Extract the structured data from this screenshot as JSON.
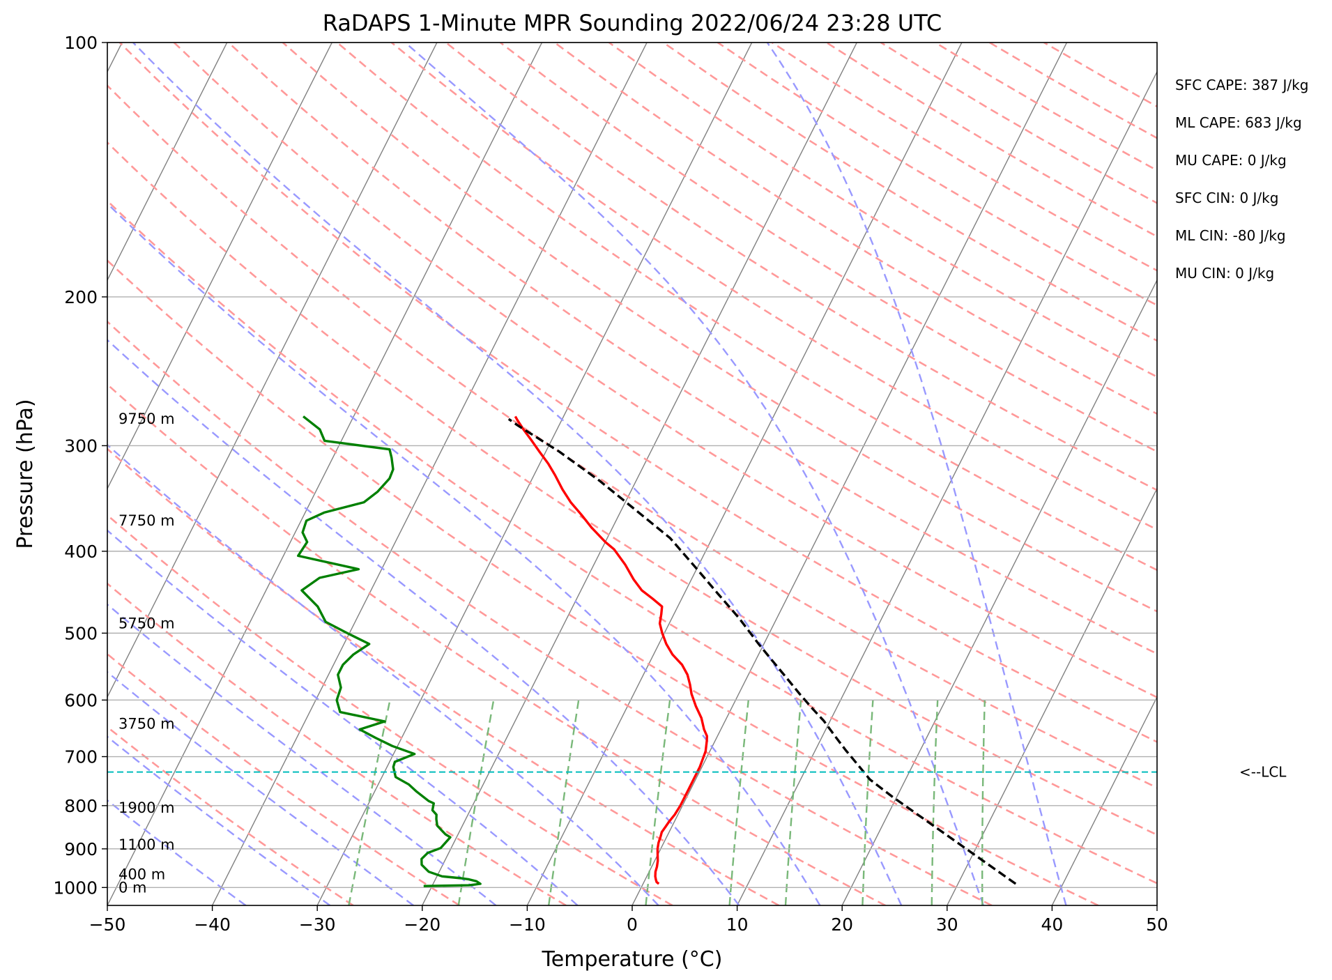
{
  "chart_data": {
    "type": "line",
    "subtype": "skew-t log-p sounding",
    "title": "RaDAPS 1-Minute MPR Sounding 2022/06/24 23:28 UTC",
    "xlabel": "Temperature (°C)",
    "ylabel": "Pressure (hPa)",
    "xlim": [
      -50,
      50
    ],
    "ylim": [
      1050,
      100
    ],
    "yscale": "log",
    "xticks": [
      "−50",
      "−40",
      "−30",
      "−20",
      "−10",
      "0",
      "10",
      "20",
      "30",
      "40",
      "50"
    ],
    "yticks": [
      {
        "value": 100,
        "label": "100"
      },
      {
        "value": 200,
        "label": "200"
      },
      {
        "value": 300,
        "label": "300"
      },
      {
        "value": 400,
        "label": "400"
      },
      {
        "value": 500,
        "label": "500"
      },
      {
        "value": 600,
        "label": "600"
      },
      {
        "value": 700,
        "label": "700"
      },
      {
        "value": 800,
        "label": "800"
      },
      {
        "value": 900,
        "label": "900"
      },
      {
        "value": 1000,
        "label": "1000"
      }
    ],
    "grid": true,
    "height_labels": [
      {
        "label": "9750 m",
        "p": 279
      },
      {
        "label": "7750 m",
        "p": 368
      },
      {
        "label": "5750 m",
        "p": 487
      },
      {
        "label": "3750 m",
        "p": 640
      },
      {
        "label": "1900 m",
        "p": 805
      },
      {
        "label": "1100 m",
        "p": 890
      },
      {
        "label": "400 m",
        "p": 965
      },
      {
        "label": "0 m",
        "p": 1000
      }
    ],
    "stats": [
      "SFC CAPE: 387 J/kg",
      "ML CAPE: 683 J/kg",
      "MU CAPE: 0 J/kg",
      "SFC CIN: 0 J/kg",
      "ML CIN: -80 J/kg",
      "MU CIN: 0 J/kg"
    ],
    "lcl": {
      "p": 730,
      "label": "<--LCL"
    },
    "series": [
      {
        "key": "temperature",
        "color": "#ff0000",
        "points": [
          [
            1.5,
            990
          ],
          [
            1.2,
            985
          ],
          [
            1.0,
            978
          ],
          [
            0.8,
            970
          ],
          [
            0.6,
            958
          ],
          [
            0.5,
            945
          ],
          [
            0.3,
            930
          ],
          [
            0.0,
            915
          ],
          [
            -0.3,
            900
          ],
          [
            -0.5,
            885
          ],
          [
            -0.6,
            870
          ],
          [
            -0.7,
            860
          ],
          [
            -0.6,
            848
          ],
          [
            -0.5,
            835
          ],
          [
            -0.3,
            820
          ],
          [
            -0.2,
            800
          ],
          [
            -0.2,
            790
          ],
          [
            -0.2,
            778
          ],
          [
            -0.2,
            765
          ],
          [
            -0.2,
            745
          ],
          [
            -0.2,
            720
          ],
          [
            -0.3,
            705
          ],
          [
            -0.4,
            690
          ],
          [
            -0.6,
            680
          ],
          [
            -0.8,
            670
          ],
          [
            -1.0,
            662
          ],
          [
            -1.6,
            650
          ],
          [
            -2.4,
            630
          ],
          [
            -3.5,
            610
          ],
          [
            -4.5,
            590
          ],
          [
            -5.1,
            575
          ],
          [
            -5.8,
            560
          ],
          [
            -6.8,
            545
          ],
          [
            -8.2,
            530
          ],
          [
            -9.3,
            515
          ],
          [
            -10.2,
            500
          ],
          [
            -10.9,
            487
          ],
          [
            -11.2,
            475
          ],
          [
            -11.5,
            465
          ],
          [
            -12.8,
            455
          ],
          [
            -14.2,
            445
          ],
          [
            -15.5,
            432
          ],
          [
            -17.0,
            415
          ],
          [
            -18.8,
            398
          ],
          [
            -20.0,
            390
          ],
          [
            -22.0,
            375
          ],
          [
            -23.6,
            362
          ],
          [
            -25.2,
            350
          ],
          [
            -26.6,
            338
          ],
          [
            -28.0,
            325
          ],
          [
            -29.2,
            315
          ],
          [
            -30.6,
            305
          ],
          [
            -32.0,
            295
          ],
          [
            -33.2,
            287
          ],
          [
            -34.2,
            280
          ],
          [
            -34.6,
            277
          ]
        ]
      },
      {
        "key": "dewpoint",
        "color": "#008000",
        "points": [
          [
            -20.8,
            996
          ],
          [
            -16.5,
            994
          ],
          [
            -15.5,
            990
          ],
          [
            -16.0,
            983
          ],
          [
            -16.8,
            978
          ],
          [
            -17.6,
            975
          ],
          [
            -19.5,
            970
          ],
          [
            -21.0,
            958
          ],
          [
            -22.0,
            940
          ],
          [
            -22.3,
            925
          ],
          [
            -22.0,
            910
          ],
          [
            -21.0,
            898
          ],
          [
            -20.8,
            885
          ],
          [
            -20.6,
            872
          ],
          [
            -21.2,
            865
          ],
          [
            -21.8,
            855
          ],
          [
            -22.4,
            845
          ],
          [
            -22.8,
            830
          ],
          [
            -23.0,
            820
          ],
          [
            -23.6,
            810
          ],
          [
            -23.8,
            795
          ],
          [
            -24.4,
            790
          ],
          [
            -26.0,
            770
          ],
          [
            -27.1,
            755
          ],
          [
            -28.7,
            740
          ],
          [
            -29.4,
            720
          ],
          [
            -29.5,
            710
          ],
          [
            -28.0,
            695
          ],
          [
            -30.5,
            680
          ],
          [
            -32.5,
            665
          ],
          [
            -34.4,
            650
          ],
          [
            -32.4,
            636
          ],
          [
            -37.1,
            620
          ],
          [
            -38.0,
            600
          ],
          [
            -38.2,
            580
          ],
          [
            -39.1,
            560
          ],
          [
            -39.1,
            545
          ],
          [
            -38.6,
            530
          ],
          [
            -37.6,
            515
          ],
          [
            -40.2,
            500
          ],
          [
            -42.8,
            485
          ],
          [
            -44.3,
            465
          ],
          [
            -46.6,
            445
          ],
          [
            -45.5,
            430
          ],
          [
            -42.2,
            420
          ],
          [
            -48.6,
            405
          ],
          [
            -48.4,
            390
          ],
          [
            -49.3,
            380
          ],
          [
            -49.5,
            368
          ],
          [
            -48.2,
            360
          ],
          [
            -44.9,
            350
          ],
          [
            -44.1,
            340
          ],
          [
            -43.6,
            328
          ],
          [
            -43.7,
            320
          ],
          [
            -44.4,
            310
          ],
          [
            -45.0,
            303
          ],
          [
            -51.6,
            296
          ],
          [
            -52.6,
            287
          ],
          [
            -54.8,
            277
          ]
        ]
      },
      {
        "key": "parcel-profile",
        "color": "#000000",
        "dashed": true,
        "points": [
          [
            35.5,
            990
          ],
          [
            19.5,
            780
          ],
          [
            16.6,
            745
          ],
          [
            14.7,
            715
          ],
          [
            12.9,
            688
          ],
          [
            11.4,
            665
          ],
          [
            9.4,
            635
          ],
          [
            7.8,
            615
          ],
          [
            5.8,
            590
          ],
          [
            3.8,
            565
          ],
          [
            1.7,
            540
          ],
          [
            -0.5,
            515
          ],
          [
            -3.6,
            480
          ],
          [
            -6.8,
            449
          ],
          [
            -10.3,
            417
          ],
          [
            -14.0,
            386
          ],
          [
            -18.9,
            356
          ],
          [
            -23.5,
            330
          ],
          [
            -28.7,
            305
          ],
          [
            -33.9,
            284
          ],
          [
            -35.1,
            279
          ]
        ]
      }
    ],
    "background_lines": {
      "dry_adiabats": "#ff9999",
      "moist_adiabats": "#9999ff",
      "mixing_ratio_lines": "#79b879",
      "skewed_isotherms": "#808080",
      "lcl_line": "#00bcbc"
    }
  }
}
